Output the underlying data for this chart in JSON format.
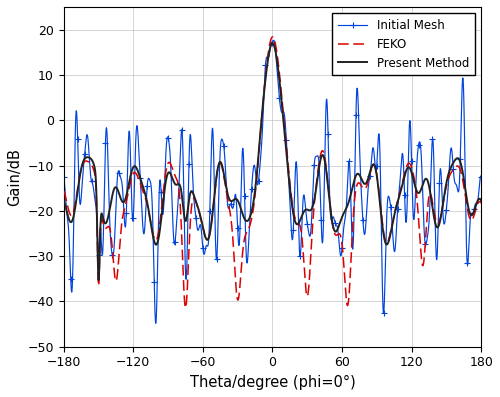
{
  "xlabel": "Theta/degree (phi=0°)",
  "ylabel": "Gain/dB",
  "xlim": [
    -180,
    180
  ],
  "ylim": [
    -50,
    25
  ],
  "xticks": [
    -180,
    -120,
    -60,
    0,
    60,
    120,
    180
  ],
  "yticks": [
    -50,
    -40,
    -30,
    -20,
    -10,
    0,
    10,
    20
  ],
  "legend": [
    "Present Method",
    "FEKO",
    "Initial Mesh"
  ],
  "present_color": "#222222",
  "feko_color": "#dd0000",
  "initial_color": "#0044dd",
  "grid_color": "#bbbbbb",
  "background_color": "#ffffff"
}
